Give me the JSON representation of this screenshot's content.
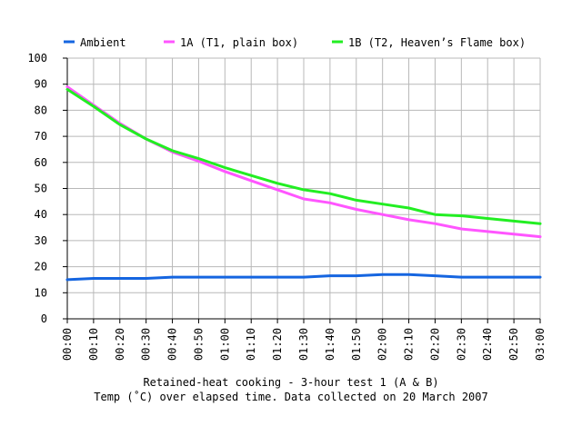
{
  "chart_data": {
    "type": "line",
    "x": [
      "00:00",
      "00:10",
      "00:20",
      "00:30",
      "00:40",
      "00:50",
      "01:00",
      "01:10",
      "01:20",
      "01:30",
      "01:40",
      "01:50",
      "02:00",
      "02:10",
      "02:20",
      "02:30",
      "02:40",
      "02:50",
      "03:00"
    ],
    "series": [
      {
        "name": "Ambient",
        "color": "#1565e0",
        "values": [
          15,
          15.5,
          15.5,
          15.5,
          16,
          16,
          16,
          16,
          16,
          16,
          16.5,
          16.5,
          17,
          17,
          16.5,
          16,
          16,
          16,
          16
        ]
      },
      {
        "name": "1A (T1, plain box)",
        "color": "#ff55ff",
        "values": [
          89,
          82,
          75,
          69,
          64,
          60.5,
          56.5,
          53,
          49.5,
          46,
          44.5,
          42,
          40,
          38,
          36.5,
          34.5,
          33.5,
          32.5,
          31.5
        ]
      },
      {
        "name": "1B (T2, Heaven’s Flame box)",
        "color": "#22ee22",
        "values": [
          88,
          81.5,
          74.5,
          69,
          64.5,
          61.5,
          58,
          55,
          52,
          49.5,
          48,
          45.5,
          44,
          42.5,
          40,
          39.5,
          38.5,
          37.5,
          36.5
        ]
      }
    ],
    "ylim": [
      0,
      100
    ],
    "yticks": [
      0,
      10,
      20,
      30,
      40,
      50,
      60,
      70,
      80,
      90,
      100
    ],
    "grid": true,
    "legend": "top",
    "title": "Retained-heat cooking - 3-hour test 1 (A & B)",
    "subtitle": "Temp (˚C) over elapsed time. Data collected on 20 March 2007"
  }
}
